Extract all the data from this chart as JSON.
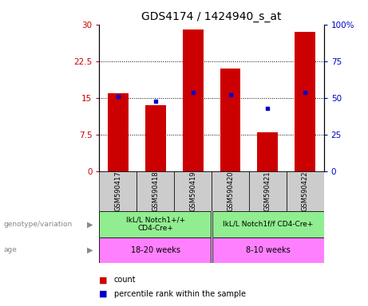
{
  "title": "GDS4174 / 1424940_s_at",
  "samples": [
    "GSM590417",
    "GSM590418",
    "GSM590419",
    "GSM590420",
    "GSM590421",
    "GSM590422"
  ],
  "counts": [
    16.0,
    13.5,
    29.0,
    21.0,
    8.0,
    28.5
  ],
  "percentile_ranks": [
    51,
    48,
    54,
    52,
    43,
    54
  ],
  "group1_label": "IkL/L Notch1+/+\nCD4-Cre+",
  "group2_label": "IkL/L Notch1f/f CD4-Cre+",
  "group_color": "#90EE90",
  "age1_label": "18-20 weeks",
  "age2_label": "8-10 weeks",
  "age_color": "#FF80FF",
  "ylim_left": [
    0,
    30
  ],
  "ylim_right": [
    0,
    100
  ],
  "yticks_left": [
    0,
    7.5,
    15,
    22.5,
    30
  ],
  "ytick_labels_left": [
    "0",
    "7.5",
    "15",
    "22.5",
    "30"
  ],
  "yticks_right": [
    0,
    25,
    50,
    75,
    100
  ],
  "ytick_labels_right": [
    "0",
    "25",
    "50",
    "75",
    "100%"
  ],
  "bar_color": "#CC0000",
  "dot_color": "#0000CC",
  "bar_width": 0.55,
  "left_tick_color": "#CC0000",
  "right_tick_color": "#0000CC",
  "sample_box_color": "#CCCCCC",
  "genotype_label": "genotype/variation",
  "age_label": "age",
  "legend_count": "count",
  "legend_pct": "percentile rank within the sample",
  "grid_lines": [
    7.5,
    15,
    22.5
  ]
}
